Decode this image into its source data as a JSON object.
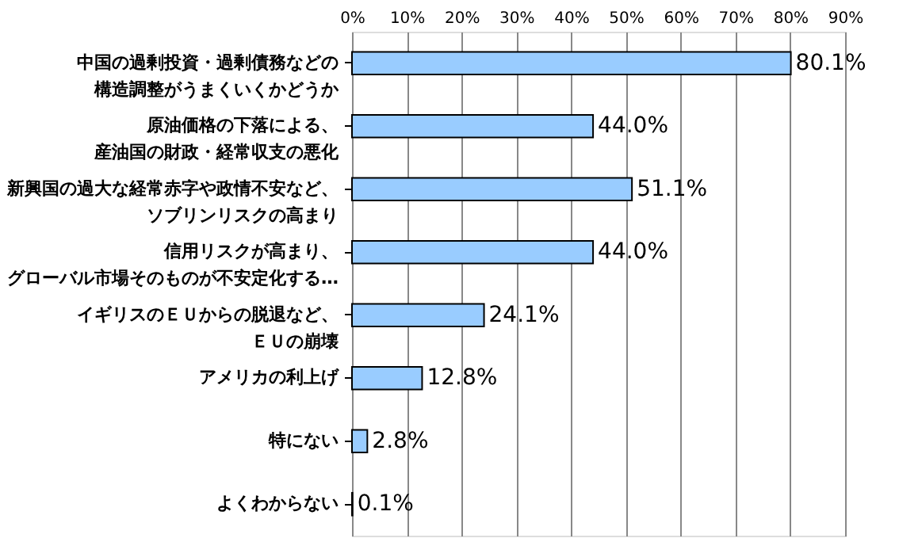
{
  "chart_data": {
    "type": "bar",
    "orientation": "horizontal",
    "categories": [
      "中国の過剰投資・過剰債務などの構造調整がうまくいくかどうか",
      "原油価格の下落による、産油国の財政・経常収支の悪化",
      "新興国の過大な経常赤字や政情不安など、ソブリンリスクの高まり",
      "信用リスクが高まり、グローバル市場そのものが不安定化する…",
      "イギリスのＥＵからの脱退など、ＥＵの崩壊",
      "アメリカの利上げ",
      "特にない",
      "よくわからない"
    ],
    "values": [
      80.1,
      44.0,
      51.1,
      44.0,
      24.1,
      12.8,
      2.8,
      0.1
    ],
    "value_labels": [
      "80.1%",
      "44.0%",
      "51.1%",
      "44.0%",
      "24.1%",
      "12.8%",
      "2.8%",
      "0.1%"
    ],
    "color": "#99ccff",
    "xlim": [
      0,
      90
    ],
    "xticks": [
      {
        "value": 0,
        "label": "0%"
      },
      {
        "value": 10,
        "label": "10%"
      },
      {
        "value": 20,
        "label": "20%"
      },
      {
        "value": 30,
        "label": "30%"
      },
      {
        "value": 40,
        "label": "40%"
      },
      {
        "value": 50,
        "label": "50%"
      },
      {
        "value": 60,
        "label": "60%"
      },
      {
        "value": 70,
        "label": "70%"
      },
      {
        "value": 80,
        "label": "80%"
      },
      {
        "value": 90,
        "label": "90%"
      }
    ],
    "grid": "x"
  }
}
